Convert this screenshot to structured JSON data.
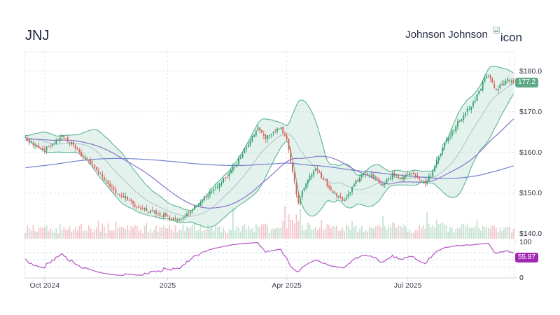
{
  "header": {
    "symbol": "JNJ",
    "company": "Johnson Johnson",
    "logo_alt": "icon"
  },
  "colors": {
    "up": "#2f9e6b",
    "down": "#dc5f5a",
    "band_line": "#4fae8d",
    "band_fill": "rgba(79,174,141,0.16)",
    "sma20": "rgba(110,135,150,0.45)",
    "ma50": "#8a74c7",
    "ma200": "#7181ce",
    "vol_up": "rgba(74,164,118,0.32)",
    "vol_down": "rgba(228,106,128,0.38)",
    "rsi_line": "#b653c4",
    "rsi_guide": "#c9e0f2",
    "grid": "#e5e7eb",
    "axis_line": "#d0d3d9",
    "border": "#ecedf1",
    "tick_text": "#3f4350",
    "price_text": "#2b303f",
    "price_badge_bg": "#5fa887",
    "rsi_badge_bg": "#a128b0",
    "badge_text": "#ffffff"
  },
  "chart_data": {
    "type": "candlestick",
    "symbol": "JNJ",
    "days": 255,
    "seed": 7,
    "x_ticks": [
      {
        "day": 10,
        "label": "Oct 2024"
      },
      {
        "day": 74,
        "label": "2025"
      },
      {
        "day": 136,
        "label": "Apr 2025"
      },
      {
        "day": 199,
        "label": "Jul 2025"
      },
      {
        "day": 252,
        "label": ""
      }
    ],
    "y_axis": {
      "min": 139,
      "max": 184.5,
      "labels": [
        {
          "price": 180,
          "text": "$180.0"
        },
        {
          "price": 170,
          "text": "$170.0"
        },
        {
          "price": 160,
          "text": "$160.0"
        },
        {
          "price": 150,
          "text": "$150.0"
        },
        {
          "price": 140,
          "text": "$140.0"
        }
      ]
    },
    "last_price": {
      "value": 177.2,
      "text": "177.2"
    },
    "rsi": {
      "period": 14,
      "last": 55.87,
      "text": "55.87",
      "axis_labels": [
        {
          "value": 100,
          "text": "100"
        },
        {
          "value": 0,
          "text": "0"
        }
      ],
      "guides": [
        30,
        50,
        70
      ]
    },
    "indicators": {
      "bollinger_period": 20,
      "bollinger_k": 2,
      "ma_fast": 50,
      "ma_slow": 200
    },
    "prehistory_anchors": [
      [
        -210,
        151.5
      ],
      [
        -170,
        148.5
      ],
      [
        -130,
        152.0
      ],
      [
        -90,
        157.5
      ],
      [
        -55,
        161.5
      ],
      [
        -25,
        163.8
      ]
    ],
    "close_anchors": [
      [
        0,
        163.5
      ],
      [
        4,
        161.8
      ],
      [
        9,
        160.6
      ],
      [
        13,
        161.8
      ],
      [
        19,
        164.2
      ],
      [
        24,
        162.2
      ],
      [
        29,
        159.4
      ],
      [
        34,
        157.6
      ],
      [
        40,
        153.8
      ],
      [
        46,
        150.6
      ],
      [
        53,
        148.8
      ],
      [
        60,
        146.2
      ],
      [
        67,
        145.4
      ],
      [
        74,
        144.2
      ],
      [
        80,
        142.9
      ],
      [
        86,
        145.8
      ],
      [
        92,
        148.2
      ],
      [
        99,
        151.6
      ],
      [
        106,
        154.8
      ],
      [
        112,
        159.2
      ],
      [
        117,
        163.2
      ],
      [
        121,
        166.0
      ],
      [
        125,
        163.4
      ],
      [
        129,
        164.6
      ],
      [
        133,
        166.2
      ],
      [
        136,
        163.0
      ],
      [
        139,
        155.2
      ],
      [
        142,
        147.8
      ],
      [
        146,
        152.8
      ],
      [
        151,
        155.8
      ],
      [
        156,
        152.8
      ],
      [
        161,
        149.8
      ],
      [
        166,
        148.2
      ],
      [
        171,
        152.2
      ],
      [
        176,
        154.8
      ],
      [
        181,
        154.2
      ],
      [
        186,
        152.0
      ],
      [
        191,
        154.6
      ],
      [
        196,
        153.4
      ],
      [
        201,
        155.2
      ],
      [
        205,
        153.6
      ],
      [
        208,
        152.4
      ],
      [
        211,
        154.5
      ],
      [
        214,
        158.0
      ],
      [
        218,
        162.0
      ],
      [
        222,
        165.0
      ],
      [
        226,
        168.0
      ],
      [
        230,
        170.5
      ],
      [
        234,
        173.0
      ],
      [
        237,
        176.0
      ],
      [
        240,
        179.3
      ],
      [
        242,
        178.0
      ],
      [
        245,
        175.2
      ],
      [
        248,
        176.8
      ],
      [
        251,
        178.0
      ],
      [
        254,
        177.2
      ]
    ],
    "volume_spikes": [
      [
        38,
        0.55
      ],
      [
        108,
        0.95
      ],
      [
        135,
        1.0
      ],
      [
        137,
        0.75
      ],
      [
        143,
        0.9
      ],
      [
        186,
        0.7
      ],
      [
        209,
        0.8
      ]
    ]
  }
}
